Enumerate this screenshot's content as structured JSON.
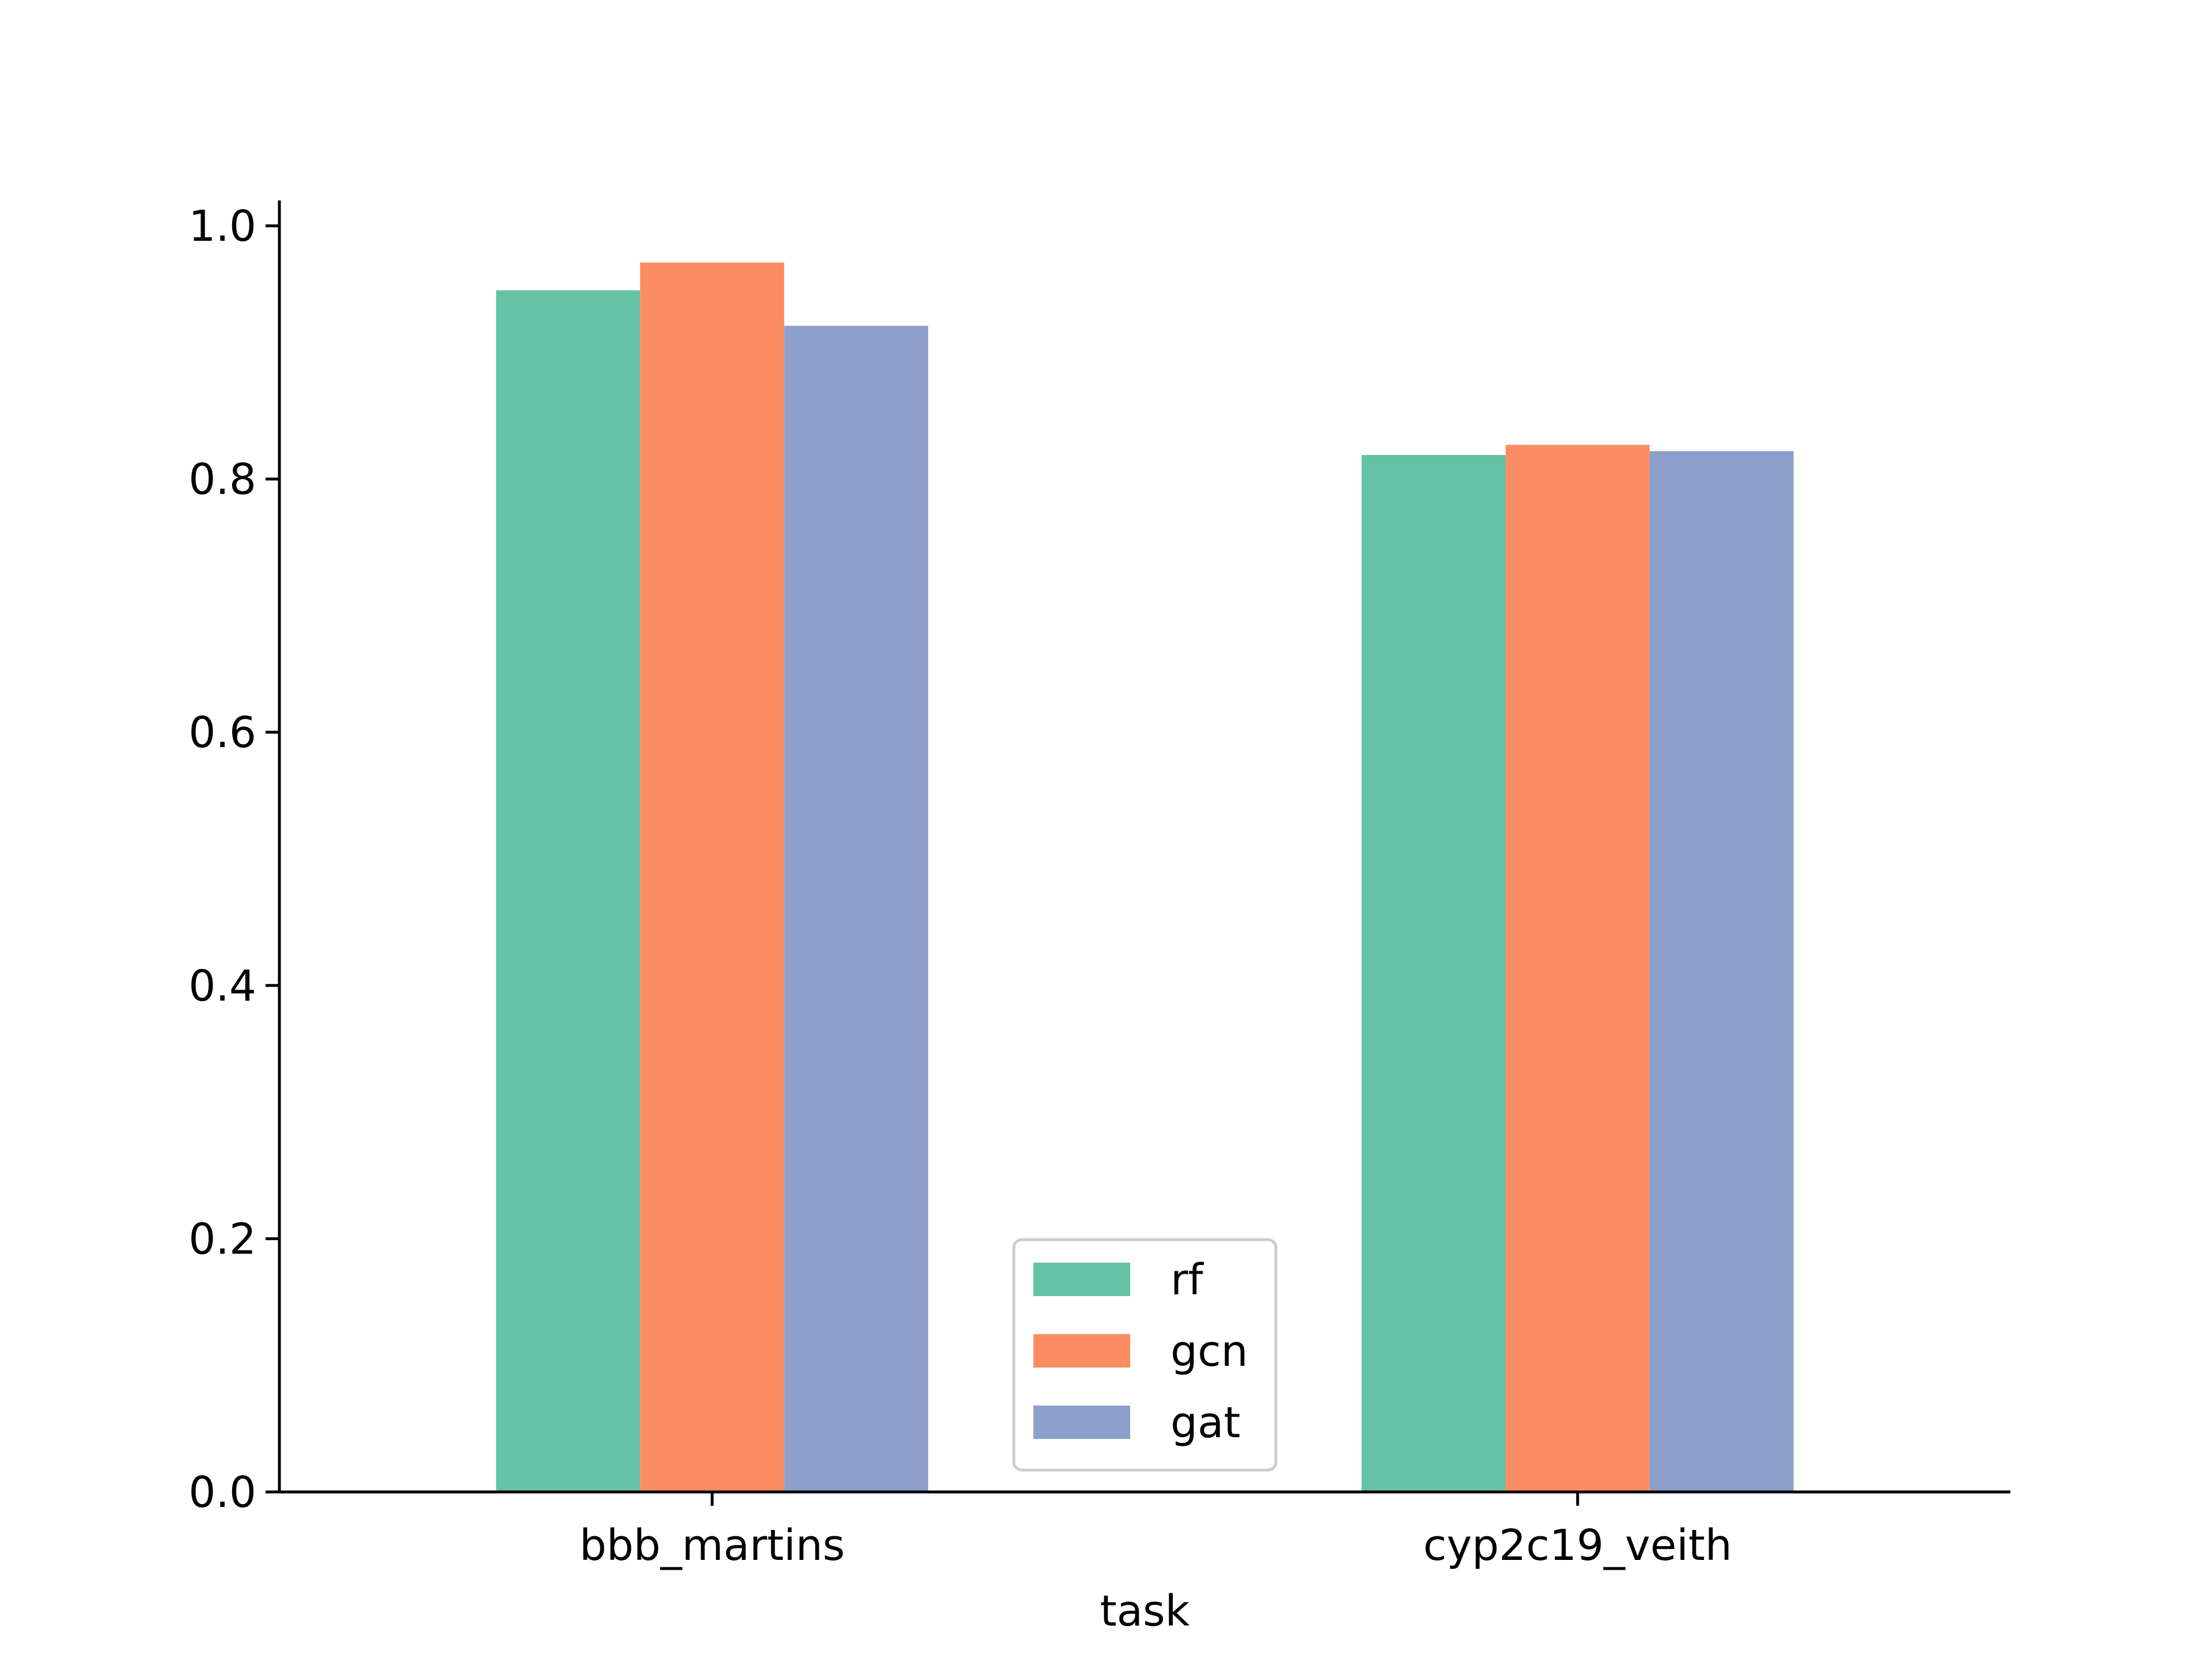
{
  "chart_data": {
    "type": "bar",
    "title": "",
    "xlabel": "task",
    "ylabel": "",
    "categories": [
      "bbb_martins",
      "cyp2c19_veith"
    ],
    "series": [
      {
        "name": "rf",
        "color": "#66c2a5",
        "values": [
          0.949,
          0.819
        ]
      },
      {
        "name": "gcn",
        "color": "#fc8d62",
        "values": [
          0.971,
          0.827
        ]
      },
      {
        "name": "gat",
        "color": "#8da0cb",
        "values": [
          0.921,
          0.822
        ]
      }
    ],
    "ylim": [
      0,
      1.02
    ],
    "yticks": [
      0.0,
      0.2,
      0.4,
      0.6,
      0.8,
      1.0
    ],
    "ytick_labels": [
      "0.0",
      "0.2",
      "0.4",
      "0.6",
      "0.8",
      "1.0"
    ],
    "grid": false,
    "legend": {
      "placement": "lower-center"
    }
  }
}
